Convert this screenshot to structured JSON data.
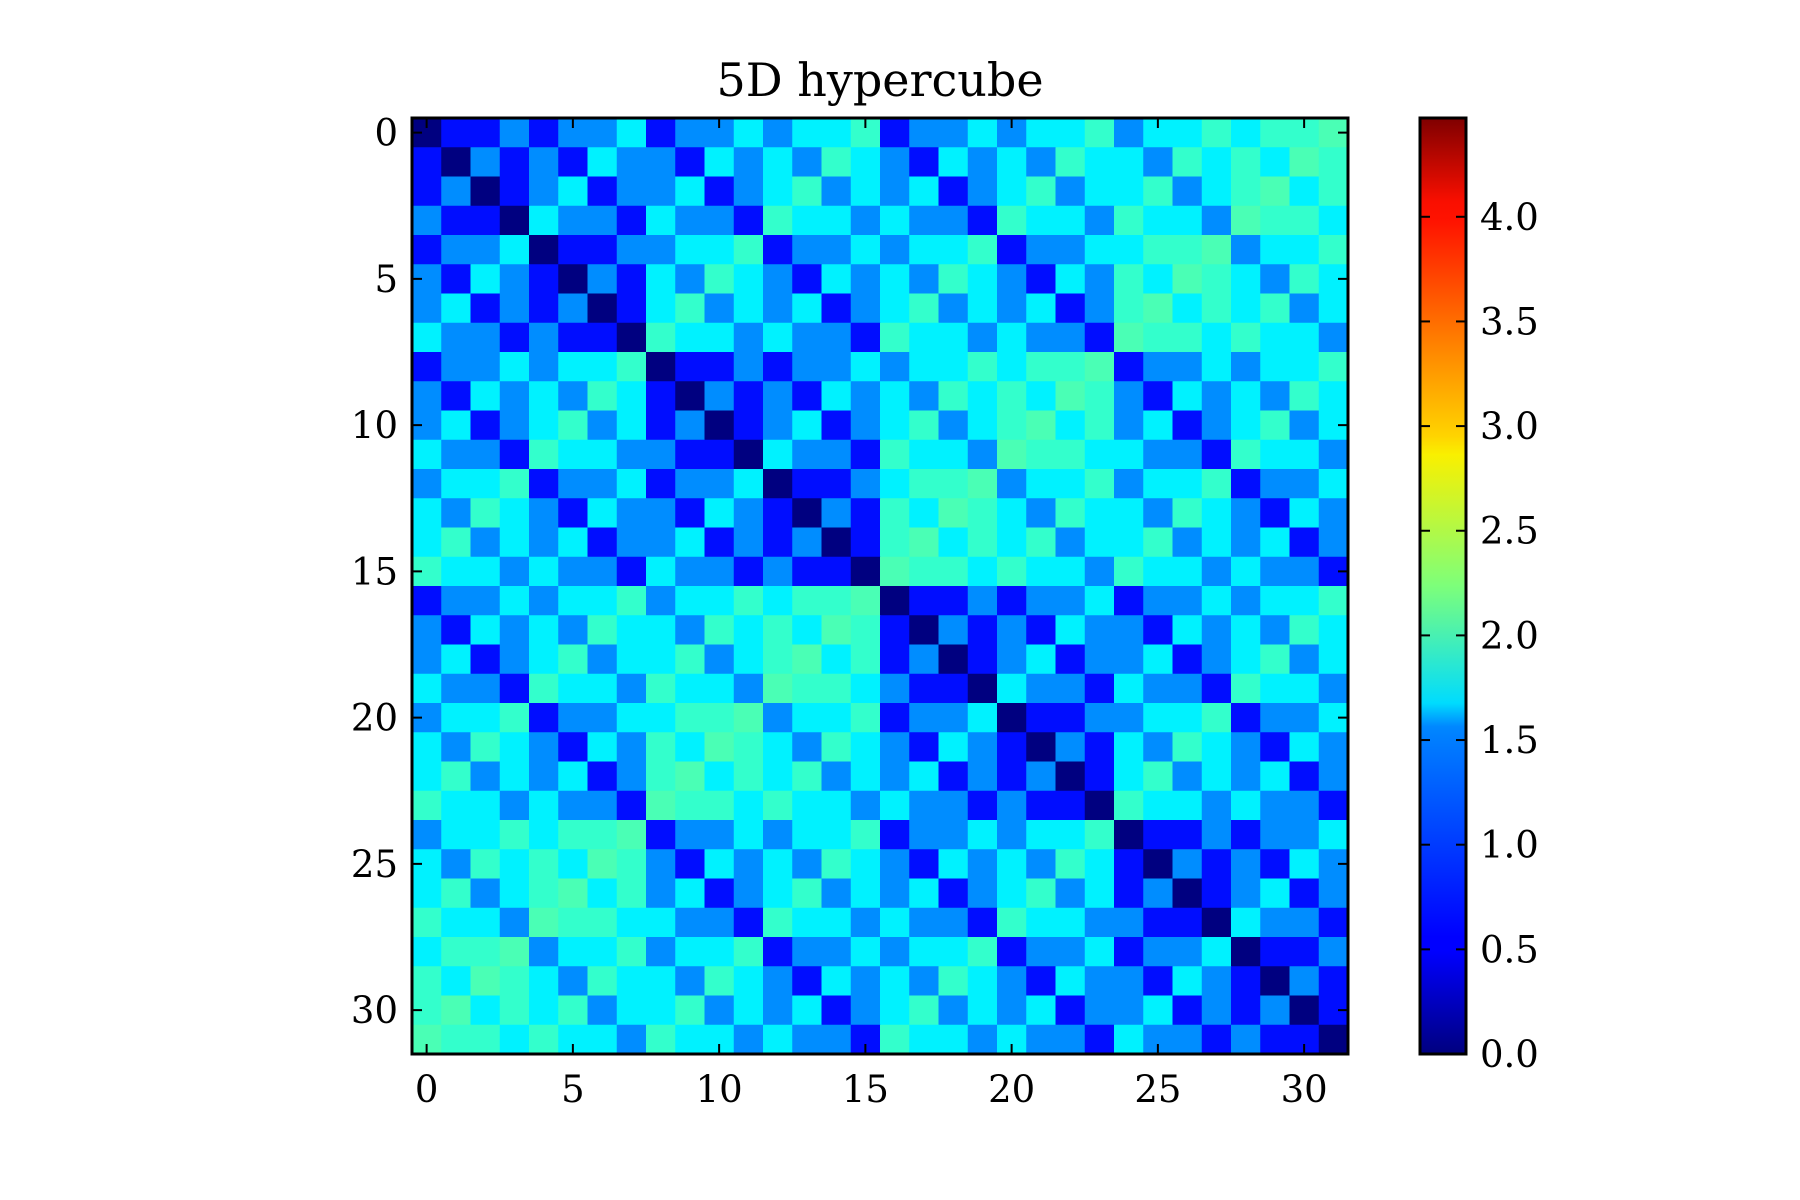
{
  "chart_data": {
    "type": "heatmap",
    "title": "5D hypercube",
    "xlabel": "",
    "ylabel": "",
    "n": 32,
    "x_ticks": [
      0,
      5,
      10,
      15,
      20,
      25,
      30
    ],
    "y_ticks": [
      0,
      5,
      10,
      15,
      20,
      25,
      30
    ],
    "x_tick_labels": [
      "0",
      "5",
      "10",
      "15",
      "20",
      "25",
      "30"
    ],
    "y_tick_labels": [
      "0",
      "5",
      "10",
      "15",
      "20",
      "25",
      "30"
    ],
    "cell_value_rule": "value(i,j) = 2 * sin(pi * hamming(i XOR j) / 10)",
    "colorbar": {
      "min": 0.0,
      "max": 4.472,
      "ticks": [
        0.0,
        0.5,
        1.0,
        1.5,
        2.0,
        2.5,
        3.0,
        3.5,
        4.0
      ],
      "tick_labels": [
        "0.0",
        "0.5",
        "1.0",
        "1.5",
        "2.0",
        "2.5",
        "3.0",
        "3.5",
        "4.0"
      ],
      "colormap": "jet"
    },
    "grid": false,
    "legend": "colorbar-right"
  }
}
